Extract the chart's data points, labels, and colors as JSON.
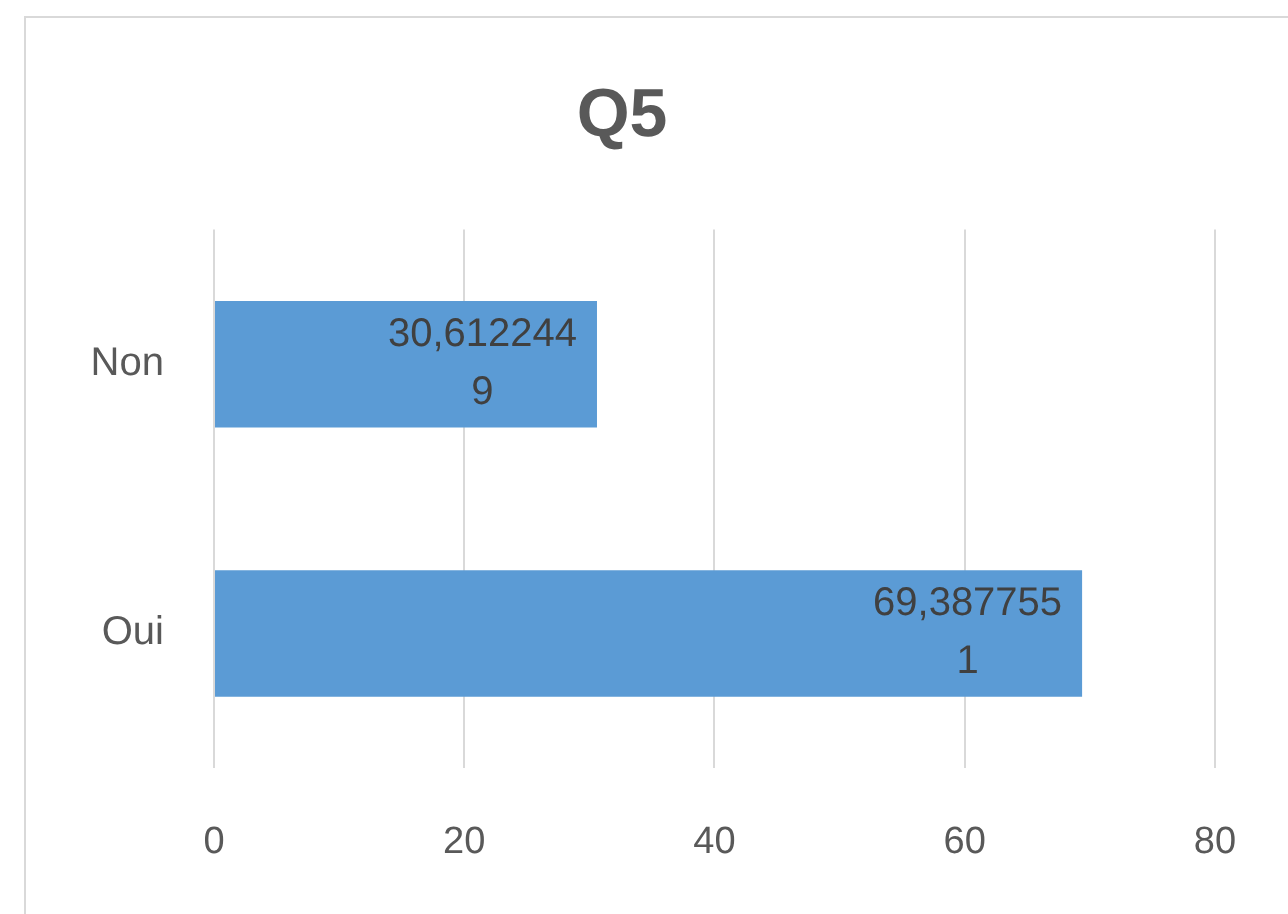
{
  "chart_data": {
    "type": "bar",
    "orientation": "horizontal",
    "title": "Q5",
    "categories": [
      "Non",
      "Oui"
    ],
    "values": [
      30.6122449,
      69.3877551
    ],
    "value_labels": [
      "30,6122449",
      "69,3877551"
    ],
    "color": "#5b9bd5",
    "xlim": [
      0,
      80
    ],
    "xticks": [
      0,
      20,
      40,
      60,
      80
    ],
    "grid": "x"
  }
}
